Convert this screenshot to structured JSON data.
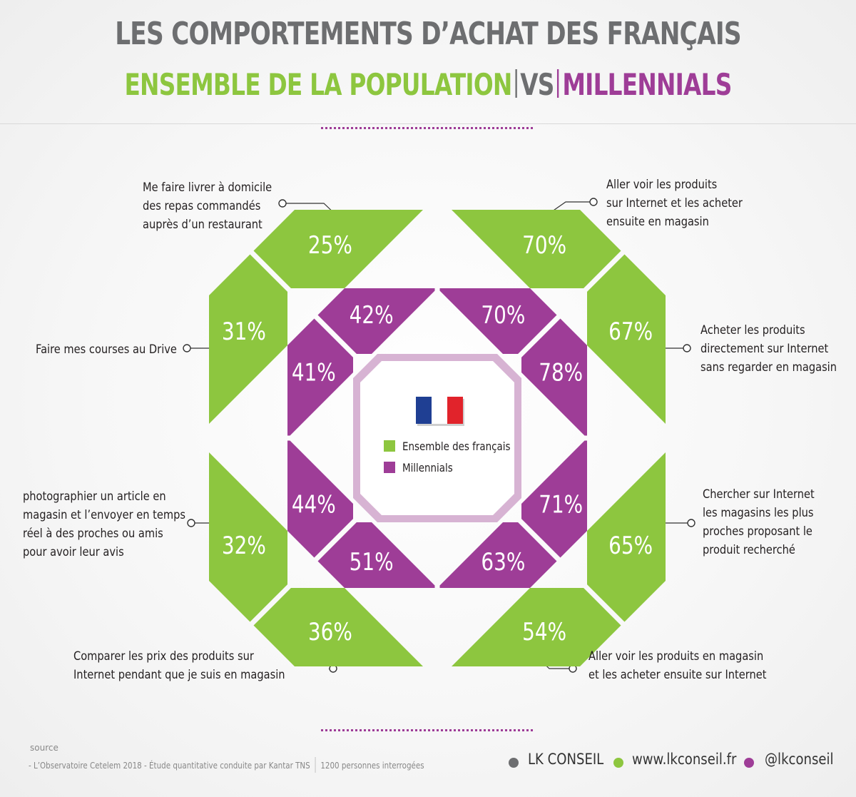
{
  "title": "LES COMPORTEMENTS D’ACHAT DES FRANÇAIS",
  "subtitle": {
    "left": "ENSEMBLE DE LA POPULATION",
    "middle": "VS",
    "right": "MILLENNIALS"
  },
  "colors": {
    "green": "#8dc63f",
    "purple": "#9e3d97",
    "grey": "#6d6e70"
  },
  "center": {
    "flag_icon": "france-flag-icon",
    "legend": [
      {
        "label": "Ensemble des français",
        "color": "#8dc63f"
      },
      {
        "label": "Millennials",
        "color": "#9e3d97"
      }
    ]
  },
  "chart_data": {
    "type": "table",
    "columns": [
      "Ensemble des français",
      "Millennials"
    ],
    "rows": [
      {
        "label": "Aller voir les produits sur Internet et les acheter ensuite en magasin",
        "total": "70%",
        "millennials": "70%"
      },
      {
        "label": "Acheter les produits directement sur Internet sans regarder en magasin",
        "total": "67%",
        "millennials": "78%"
      },
      {
        "label": "Chercher sur Internet les magasins les plus proches proposant le produit recherché",
        "total": "65%",
        "millennials": "71%"
      },
      {
        "label": "Aller voir les produits en  magasin et les acheter ensuite sur Internet",
        "total": "54%",
        "millennials": "63%"
      },
      {
        "label": "Comparer les prix des produits sur Internet pendant que je suis en magasin",
        "total": "36%",
        "millennials": "51%"
      },
      {
        "label": "photographier un article en magasin et l’envoyer en temps réel à des proches ou amis pour avoir leur avis",
        "total": "32%",
        "millennials": "44%"
      },
      {
        "label": "Faire mes courses au Drive",
        "total": "31%",
        "millennials": "41%"
      },
      {
        "label": "Me faire livrer à domicile des repas commandés auprès d’un restaurant",
        "total": "25%",
        "millennials": "42%"
      }
    ]
  },
  "labels": {
    "top_left": [
      "Me faire livrer à domicile",
      "des repas commandés",
      "auprès d’un restaurant"
    ],
    "top_right": [
      "Aller voir les produits",
      "sur Internet et les acheter",
      "ensuite en magasin"
    ],
    "mid_left_top": [
      "Faire mes courses au Drive"
    ],
    "mid_right_top": [
      "Acheter les produits",
      "directement sur Internet",
      "sans regarder en magasin"
    ],
    "mid_left_bottom": [
      "photographier un article en",
      "magasin et l’envoyer en temps",
      "réel à des proches ou amis",
      "pour avoir leur avis"
    ],
    "mid_right_bottom": [
      "Chercher sur Internet",
      "les magasins les plus",
      "proches proposant le",
      "produit recherché"
    ],
    "bottom_left": [
      "Comparer les prix des produits sur",
      "Internet pendant que je suis en magasin"
    ],
    "bottom_right": [
      "Aller voir les produits en  magasin",
      "et les acheter ensuite sur Internet"
    ]
  },
  "footer": {
    "source_label": "source",
    "source_text": "- L’Observatoire Cetelem 2018 - Étude quantitative conduite par Kantar TNS",
    "sample": "1200 personnes interrogées",
    "brand": "LK CONSEIL",
    "website": "www.lkconseil.fr",
    "handle": "@lkconseil"
  }
}
